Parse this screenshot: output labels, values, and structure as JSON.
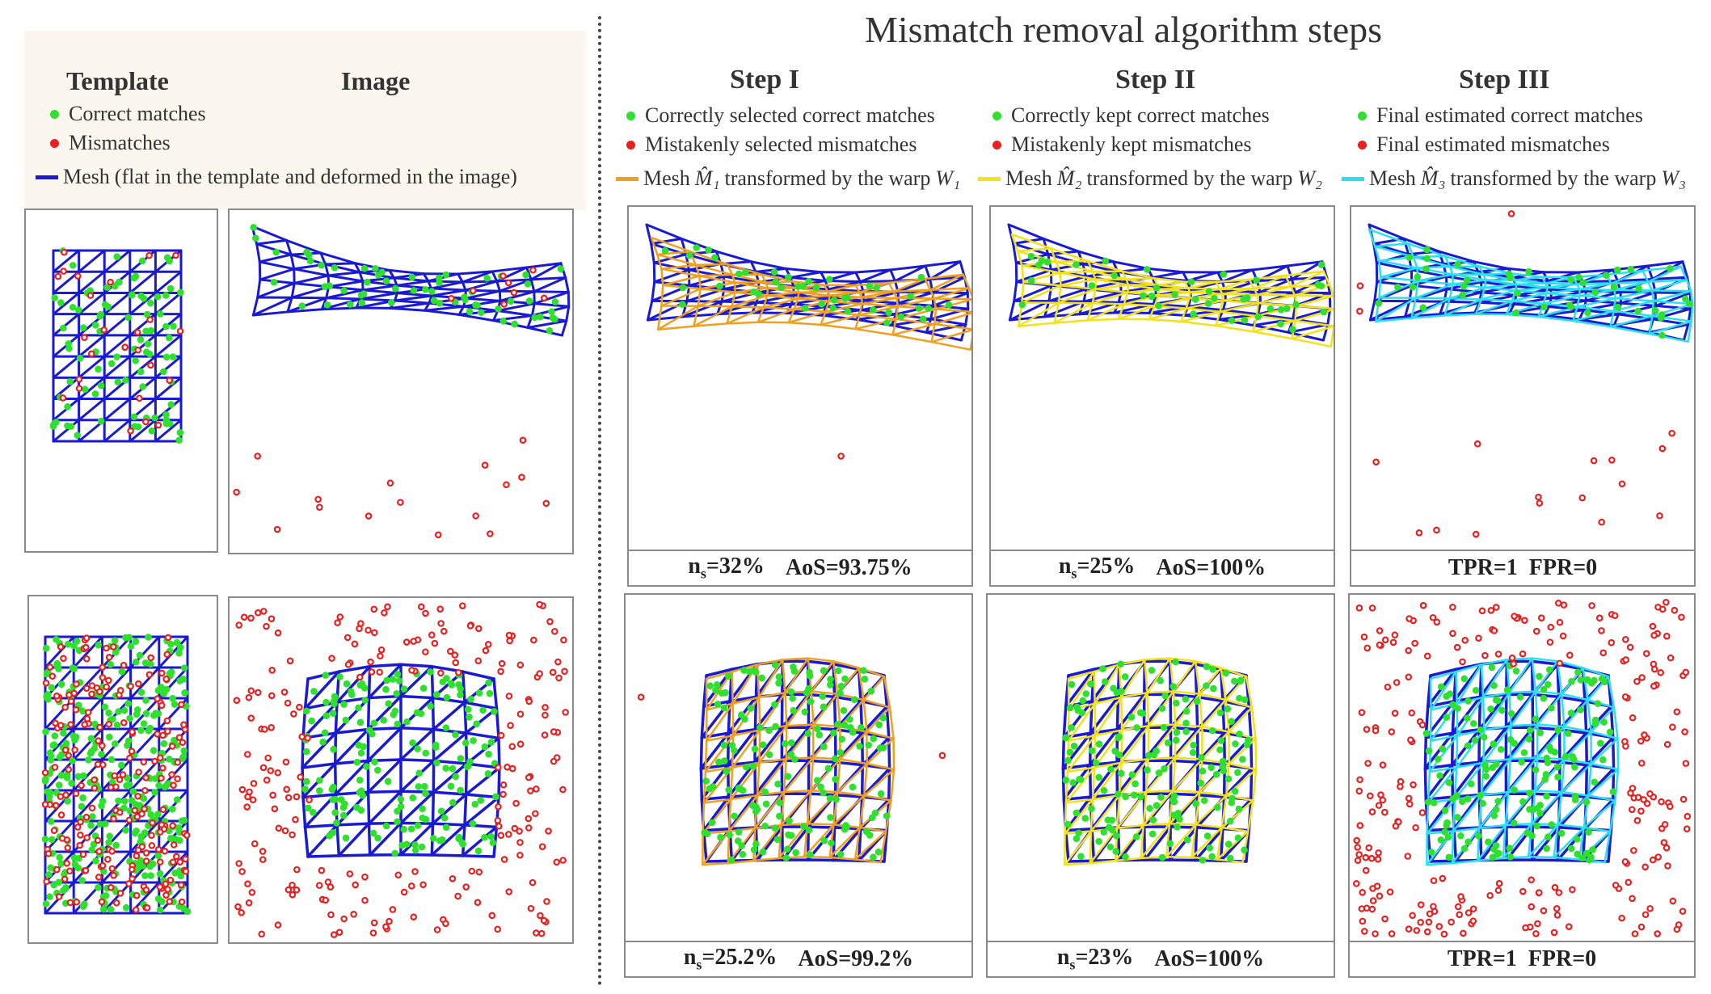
{
  "title": "Mismatch removal algorithm steps",
  "left": {
    "template_heading": "Template",
    "image_heading": "Image",
    "legend": {
      "correct": "Correct matches",
      "mismatches": "Mismatches",
      "mesh_label": "Mesh",
      "mesh_text": "(flat in the template and deformed in the image)"
    }
  },
  "steps": [
    {
      "heading": "Step I",
      "legend_correct": "Correctly selected correct matches",
      "legend_mismatch": "Mistakenly selected mismatches",
      "mesh_prefix": "Mesh",
      "mesh_symbol": "M̂₁",
      "mesh_text": "transformed by the warp",
      "warp_symbol": "W₁",
      "row1": {
        "ns": "=32%",
        "aos": "AoS=93.75%"
      },
      "row2": {
        "ns": "=25.2%",
        "aos": "AoS=99.2%"
      }
    },
    {
      "heading": "Step II",
      "legend_correct": "Correctly kept correct matches",
      "legend_mismatch": "Mistakenly kept mismatches",
      "mesh_prefix": "Mesh",
      "mesh_symbol": "M̂₂",
      "mesh_text": "transformed by the warp",
      "warp_symbol": "W₂",
      "row1": {
        "ns": "=25%",
        "aos": "AoS=100%"
      },
      "row2": {
        "ns": "=23%",
        "aos": "AoS=100%"
      }
    },
    {
      "heading": "Step III",
      "legend_correct": "Final estimated correct matches",
      "legend_mismatch": "Final estimated mismatches",
      "mesh_prefix": "Mesh",
      "mesh_symbol": "M̂₃",
      "mesh_text": "transformed by the warp",
      "warp_symbol": "W₃",
      "row1": {
        "result": "TPR=1  FPR=0"
      },
      "row2": {
        "result": "TPR=1  FPR=0"
      }
    }
  ],
  "ns_label": "n",
  "ns_sub": "s",
  "colors": {
    "mesh": "#1a1ad2",
    "correct": "#2fe02f",
    "mismatch": "#e82020",
    "warp1": "#f0a020",
    "warp2": "#f2e21a",
    "warp3": "#2ae0f0"
  }
}
